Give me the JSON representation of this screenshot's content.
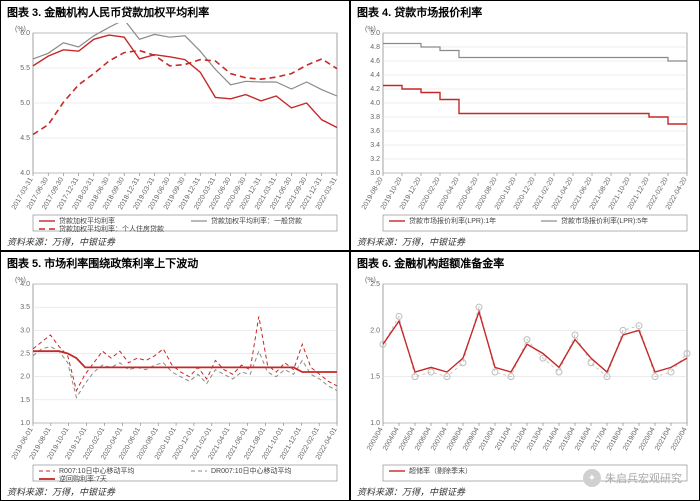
{
  "colors": {
    "red": "#c62828",
    "gray": "#8a8a8a",
    "light_gray": "#bdbdbd",
    "axis": "#666666",
    "grid": "#d9d9d9",
    "border": "#000000",
    "bg": "#ffffff"
  },
  "typography": {
    "title_size": 11,
    "axis_size": 7,
    "legend_size": 7
  },
  "source_text": "资料来源：万得，中银证券",
  "watermark": "朱启兵宏观研究",
  "charts": {
    "c3": {
      "title": "图表 3. 金融机构人民币贷款加权平均利率",
      "type": "line",
      "y_unit": "(%)",
      "ylim": [
        4.0,
        6.0
      ],
      "ytick_step": 0.5,
      "x_labels": [
        "2017-03-31",
        "2017-06-30",
        "2017-09-30",
        "2017-12-31",
        "2018-03-31",
        "2018-06-30",
        "2018-09-30",
        "2018-12-31",
        "2019-03-31",
        "2019-06-30",
        "2019-09-30",
        "2019-12-31",
        "2020-03-31",
        "2020-06-30",
        "2020-09-30",
        "2020-12-31",
        "2021-03-31",
        "2021-06-30",
        "2021-09-30",
        "2021-12-31",
        "2022-03-31"
      ],
      "series": [
        {
          "name": "贷款加权平均利率",
          "color": "#c62828",
          "dash": "",
          "width": 1.4,
          "values": [
            5.53,
            5.67,
            5.76,
            5.74,
            5.91,
            5.97,
            5.94,
            5.63,
            5.69,
            5.66,
            5.62,
            5.44,
            5.08,
            5.06,
            5.12,
            5.03,
            5.1,
            4.93,
            5.0,
            4.76,
            4.65
          ]
        },
        {
          "name": "贷款加权平均利率：一般贷款",
          "color": "#8a8a8a",
          "dash": "",
          "width": 1.2,
          "values": [
            5.63,
            5.71,
            5.86,
            5.8,
            5.96,
            6.08,
            6.19,
            5.91,
            5.98,
            5.94,
            5.96,
            5.74,
            5.48,
            5.26,
            5.31,
            5.3,
            5.3,
            5.2,
            5.3,
            5.19,
            5.1
          ]
        },
        {
          "name": "贷款加权平均利率：个人住房贷款",
          "color": "#c62828",
          "dash": "6,4",
          "width": 1.6,
          "values": [
            4.55,
            4.69,
            5.01,
            5.26,
            5.42,
            5.6,
            5.72,
            5.75,
            5.68,
            5.53,
            5.55,
            5.62,
            5.6,
            5.42,
            5.36,
            5.34,
            5.37,
            5.42,
            5.54,
            5.63,
            5.49
          ]
        }
      ]
    },
    "c4": {
      "title": "图表 4. 贷款市场报价利率",
      "type": "step",
      "y_unit": "(%)",
      "ylim": [
        3.0,
        5.0
      ],
      "ytick_step": 0.2,
      "x_labels": [
        "2019-08-20",
        "2019-10-20",
        "2019-12-20",
        "2020-02-20",
        "2020-04-20",
        "2020-06-20",
        "2020-08-20",
        "2020-10-20",
        "2020-12-20",
        "2021-02-20",
        "2021-04-20",
        "2021-06-20",
        "2021-08-20",
        "2021-10-20",
        "2021-12-20",
        "2022-02-20",
        "2022-04-20"
      ],
      "series": [
        {
          "name": "贷款市场报价利率(LPR):1年",
          "color": "#c62828",
          "dash": "",
          "width": 1.4,
          "values": [
            4.25,
            4.2,
            4.15,
            4.05,
            3.85,
            3.85,
            3.85,
            3.85,
            3.85,
            3.85,
            3.85,
            3.85,
            3.85,
            3.85,
            3.8,
            3.7,
            3.7
          ]
        },
        {
          "name": "贷款市场报价利率(LPR):5年",
          "color": "#8a8a8a",
          "dash": "",
          "width": 1.2,
          "values": [
            4.85,
            4.85,
            4.8,
            4.75,
            4.65,
            4.65,
            4.65,
            4.65,
            4.65,
            4.65,
            4.65,
            4.65,
            4.65,
            4.65,
            4.65,
            4.6,
            4.6
          ]
        }
      ]
    },
    "c5": {
      "title": "图表 5. 市场利率围绕政策利率上下波动",
      "type": "line",
      "y_unit": "(%)",
      "ylim": [
        1.0,
        4.0
      ],
      "ytick_step": 0.5,
      "x_labels": [
        "2019-06-01",
        "2019-08-01",
        "2019-10-01",
        "2019-12-01",
        "2020-02-01",
        "2020-04-01",
        "2020-06-01",
        "2020-08-01",
        "2020-10-01",
        "2020-12-01",
        "2021-02-01",
        "2021-04-01",
        "2021-06-01",
        "2021-08-01",
        "2021-10-01",
        "2021-12-01",
        "2022-02-01",
        "2022-04-01"
      ],
      "series": [
        {
          "name": "R007:10日中心移动平均",
          "color": "#c62828",
          "dash": "4,3",
          "width": 1.0,
          "values": [
            2.6,
            2.75,
            2.9,
            2.65,
            2.45,
            1.7,
            2.05,
            2.3,
            2.55,
            2.4,
            2.55,
            2.3,
            2.4,
            2.35,
            2.45,
            2.6,
            2.25,
            2.1,
            2.0,
            2.2,
            1.95,
            2.35,
            2.15,
            2.05,
            2.25,
            2.15,
            3.3,
            2.25,
            2.1,
            2.3,
            2.15,
            2.7,
            2.2,
            2.05,
            1.9,
            1.8
          ]
        },
        {
          "name": "DR007:10日中心移动平均",
          "color": "#8a8a8a",
          "dash": "4,3",
          "width": 1.0,
          "values": [
            2.45,
            2.6,
            2.65,
            2.55,
            2.3,
            1.55,
            1.85,
            2.1,
            2.25,
            2.2,
            2.3,
            2.15,
            2.2,
            2.15,
            2.25,
            2.3,
            2.1,
            2.0,
            1.9,
            2.05,
            1.85,
            2.15,
            2.05,
            1.95,
            2.1,
            2.05,
            2.55,
            2.1,
            2.0,
            2.15,
            2.05,
            2.35,
            2.05,
            1.95,
            1.8,
            1.7
          ]
        },
        {
          "name": "逆回购利率:7天",
          "color": "#c62828",
          "dash": "",
          "width": 1.8,
          "values": [
            2.55,
            2.55,
            2.55,
            2.55,
            2.5,
            2.4,
            2.2,
            2.2,
            2.2,
            2.2,
            2.2,
            2.2,
            2.2,
            2.2,
            2.2,
            2.2,
            2.2,
            2.2,
            2.2,
            2.2,
            2.2,
            2.2,
            2.2,
            2.2,
            2.2,
            2.2,
            2.2,
            2.2,
            2.2,
            2.2,
            2.2,
            2.1,
            2.1,
            2.1,
            2.1,
            2.1
          ]
        }
      ]
    },
    "c6": {
      "title": "图表 6. 金融机构超额准备金率",
      "type": "line",
      "y_unit": "(%)",
      "ylim": [
        1.0,
        2.5
      ],
      "ytick_step": 0.5,
      "x_labels": [
        "2003/04",
        "2004/04",
        "2005/04",
        "2006/04",
        "2007/04",
        "2008/04",
        "2009/04",
        "2010/04",
        "2011/04",
        "2012/04",
        "2013/04",
        "2014/04",
        "2015/04",
        "2016/04",
        "2017/04",
        "2018/04",
        "2019/04",
        "2020/04",
        "2021/04",
        "2022/04"
      ],
      "series": [
        {
          "name": "超储率（剔除季末）",
          "color": "#c62828",
          "dash": "",
          "width": 1.4,
          "values": [
            1.85,
            2.1,
            1.55,
            1.6,
            1.55,
            1.7,
            2.2,
            1.6,
            1.55,
            1.85,
            1.75,
            1.6,
            1.9,
            1.7,
            1.55,
            1.95,
            2.0,
            1.55,
            1.6,
            1.7
          ]
        }
      ],
      "scatter": {
        "color": "#bdbdbd",
        "size": 3,
        "dash": "3,3",
        "values": [
          1.85,
          2.15,
          1.5,
          1.55,
          1.5,
          1.65,
          2.25,
          1.55,
          1.5,
          1.9,
          1.7,
          1.55,
          1.95,
          1.65,
          1.5,
          2.0,
          2.05,
          1.5,
          1.55,
          1.75
        ]
      }
    }
  }
}
